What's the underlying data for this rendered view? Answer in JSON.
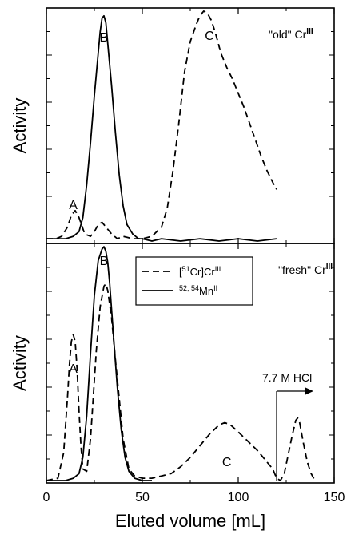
{
  "chart_data": [
    {
      "type": "line",
      "panel": "top",
      "panel_label": {
        "main": "\"old\" Cr",
        "sup": "III"
      },
      "ylabel": "Activity",
      "xlim": [
        0,
        150
      ],
      "peak_labels": [
        {
          "text": "A",
          "x": 14
        },
        {
          "text": "B",
          "x": 30
        },
        {
          "text": "C",
          "x": 85
        }
      ],
      "series": [
        {
          "style": "dashed",
          "x": [
            0,
            5,
            8,
            11,
            13,
            15,
            17,
            20,
            23,
            25,
            27,
            29,
            31,
            34,
            37,
            40,
            45,
            50,
            55,
            60,
            63,
            66,
            69,
            72,
            75,
            78,
            80,
            82,
            84,
            86,
            88,
            91,
            94,
            97,
            100,
            103,
            106,
            109,
            112,
            115,
            118,
            120
          ],
          "y": [
            0.01,
            0.01,
            0.02,
            0.06,
            0.11,
            0.13,
            0.1,
            0.03,
            0.02,
            0.04,
            0.07,
            0.08,
            0.06,
            0.03,
            0.01,
            0.02,
            0.01,
            0.01,
            0.02,
            0.06,
            0.14,
            0.3,
            0.5,
            0.72,
            0.85,
            0.92,
            0.96,
            0.98,
            0.97,
            0.94,
            0.89,
            0.8,
            0.74,
            0.69,
            0.63,
            0.57,
            0.5,
            0.43,
            0.36,
            0.3,
            0.25,
            0.22
          ]
        },
        {
          "style": "solid",
          "x": [
            0,
            5,
            10,
            14,
            17,
            19,
            21,
            23,
            25,
            27,
            28,
            29,
            30,
            31,
            32,
            34,
            36,
            38,
            40,
            42,
            45,
            48,
            50,
            55,
            60,
            70,
            80,
            90,
            100,
            110,
            120
          ],
          "y": [
            0.01,
            0.01,
            0.01,
            0.02,
            0.04,
            0.1,
            0.24,
            0.42,
            0.62,
            0.8,
            0.89,
            0.95,
            0.96,
            0.93,
            0.84,
            0.66,
            0.46,
            0.28,
            0.15,
            0.07,
            0.03,
            0.01,
            0.01,
            0.0,
            0.01,
            0.0,
            0.01,
            0.0,
            0.01,
            0.0,
            0.01
          ]
        }
      ]
    },
    {
      "type": "line",
      "panel": "bottom",
      "panel_label": {
        "main": "\"fresh\" Cr",
        "sup": "III"
      },
      "ylabel": "Activity",
      "xlabel": "Eluted volume  [mL]",
      "xlim": [
        0,
        150
      ],
      "xticks": [
        0,
        50,
        100,
        150
      ],
      "peak_labels": [
        {
          "text": "A",
          "x": 14
        },
        {
          "text": "B",
          "x": 30
        },
        {
          "text": "C",
          "x": 94
        }
      ],
      "annotation": {
        "text": "7.7 M HCl",
        "x": 120
      },
      "legend": {
        "placement": "top-center",
        "entries": [
          {
            "style": "dashed",
            "pre": "[",
            "sup1": "51",
            "mid": "Cr]Cr",
            "sup2": "III"
          },
          {
            "style": "solid",
            "pre": "",
            "sup1": "52, 54",
            "mid": "Mn",
            "sup2": "II"
          }
        ]
      },
      "series": [
        {
          "style": "dashed",
          "x": [
            0,
            6,
            9,
            11,
            12,
            13,
            14,
            15,
            16,
            17,
            18,
            19,
            21,
            23,
            26,
            28,
            30,
            31,
            32,
            34,
            36,
            38,
            40,
            43,
            46,
            50,
            55,
            60,
            65,
            70,
            75,
            80,
            85,
            90,
            93,
            96,
            100,
            105,
            110,
            115,
            118,
            120,
            122,
            124,
            126,
            128,
            130,
            131,
            132,
            134,
            136,
            138,
            140
          ],
          "y": [
            0.0,
            0.01,
            0.12,
            0.36,
            0.5,
            0.6,
            0.63,
            0.6,
            0.48,
            0.3,
            0.15,
            0.05,
            0.04,
            0.18,
            0.56,
            0.75,
            0.84,
            0.85,
            0.82,
            0.7,
            0.52,
            0.35,
            0.18,
            0.05,
            0.02,
            0.01,
            0.01,
            0.02,
            0.03,
            0.06,
            0.1,
            0.15,
            0.2,
            0.24,
            0.25,
            0.24,
            0.21,
            0.17,
            0.13,
            0.08,
            0.05,
            0.01,
            0.0,
            0.03,
            0.11,
            0.19,
            0.26,
            0.27,
            0.25,
            0.16,
            0.08,
            0.03,
            0.0
          ]
        },
        {
          "style": "solid",
          "x": [
            0,
            10,
            14,
            17,
            19,
            21,
            23,
            25,
            27,
            29,
            30,
            31,
            32,
            33,
            35,
            37,
            39,
            41,
            43,
            46,
            50,
            55
          ],
          "y": [
            0.0,
            0.0,
            0.01,
            0.03,
            0.1,
            0.28,
            0.55,
            0.8,
            0.95,
            1.0,
            1.01,
            0.99,
            0.94,
            0.85,
            0.62,
            0.4,
            0.22,
            0.1,
            0.04,
            0.01,
            0.0,
            0.0
          ]
        }
      ]
    }
  ]
}
